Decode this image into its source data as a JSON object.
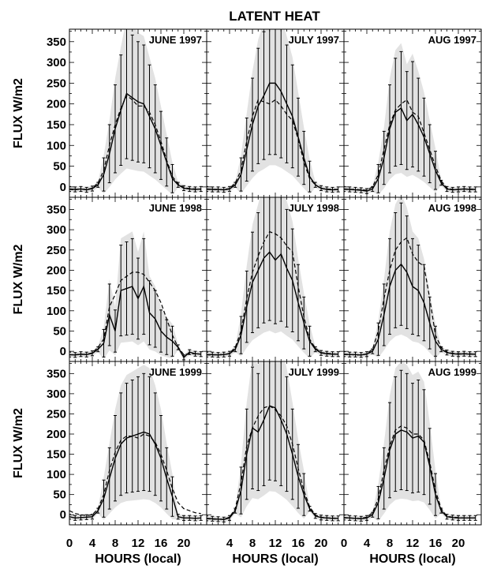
{
  "figure": {
    "title": "LATENT HEAT",
    "ylabel": "FLUX  W/m2",
    "xlabel": "HOURS (local)"
  },
  "chart_data": [
    {
      "type": "line",
      "title": "JUNE 1997",
      "xlim": [
        0,
        24
      ],
      "ylim": [
        -25,
        380
      ],
      "xticks": [
        0,
        4,
        8,
        12,
        16,
        20
      ],
      "yticks": [
        0,
        50,
        100,
        150,
        200,
        250,
        300,
        350
      ],
      "x": [
        0,
        1,
        2,
        3,
        4,
        5,
        6,
        7,
        8,
        9,
        10,
        11,
        12,
        13,
        14,
        15,
        16,
        17,
        18,
        19,
        20,
        21,
        22,
        23
      ],
      "series": [
        {
          "style": "solid",
          "values": [
            -5,
            -6,
            -5,
            -7,
            -4,
            5,
            30,
            80,
            140,
            185,
            225,
            215,
            205,
            200,
            170,
            140,
            100,
            60,
            20,
            5,
            -3,
            -5,
            -6,
            -5
          ]
        },
        {
          "style": "dashed",
          "values": [
            -6,
            -7,
            -5,
            -6,
            -3,
            10,
            40,
            100,
            150,
            190,
            220,
            210,
            195,
            195,
            180,
            150,
            110,
            65,
            25,
            8,
            -2,
            -4,
            -5,
            -6
          ]
        }
      ]
    },
    {
      "type": "line",
      "title": "JULY 1997",
      "xlim": [
        0,
        24
      ],
      "ylim": [
        -25,
        380
      ],
      "xticks": [
        4,
        8,
        12,
        16,
        20
      ],
      "yticks": [
        0,
        50,
        100,
        150,
        200,
        250,
        300,
        350
      ],
      "x": [
        0,
        1,
        2,
        3,
        4,
        5,
        6,
        7,
        8,
        9,
        10,
        11,
        12,
        13,
        14,
        15,
        16,
        17,
        18,
        19,
        20,
        21,
        22,
        23
      ],
      "series": [
        {
          "style": "solid",
          "values": [
            -5,
            -6,
            -6,
            -7,
            -5,
            5,
            30,
            90,
            150,
            195,
            220,
            250,
            250,
            230,
            200,
            170,
            120,
            70,
            25,
            5,
            -3,
            -6,
            -7,
            -6
          ]
        },
        {
          "style": "dashed",
          "values": [
            -6,
            -6,
            -7,
            -6,
            -4,
            10,
            40,
            110,
            170,
            210,
            205,
            200,
            210,
            195,
            175,
            160,
            115,
            60,
            20,
            5,
            -4,
            -5,
            -6,
            -6
          ]
        }
      ]
    },
    {
      "type": "line",
      "title": "AUG 1997",
      "xlim": [
        0,
        24
      ],
      "ylim": [
        -25,
        380
      ],
      "xticks": [
        0,
        4,
        8,
        12,
        16,
        20
      ],
      "yticks": [
        0,
        50,
        100,
        150,
        200,
        250,
        300,
        350
      ],
      "x": [
        0,
        1,
        2,
        3,
        4,
        5,
        6,
        7,
        8,
        9,
        10,
        11,
        12,
        13,
        14,
        15,
        16,
        17,
        18,
        19,
        20,
        21,
        22,
        23
      ],
      "series": [
        {
          "style": "solid",
          "values": [
            -5,
            -6,
            -7,
            -8,
            -10,
            -5,
            20,
            70,
            140,
            180,
            190,
            160,
            175,
            150,
            120,
            80,
            40,
            10,
            -5,
            -7,
            -6,
            -5,
            -6,
            -6
          ]
        },
        {
          "style": "dashed",
          "values": [
            -6,
            -6,
            -6,
            -7,
            -8,
            0,
            30,
            90,
            150,
            185,
            200,
            210,
            180,
            170,
            130,
            90,
            50,
            15,
            -3,
            -6,
            -6,
            -5,
            -5,
            -6
          ]
        }
      ]
    },
    {
      "type": "line",
      "title": "JUNE 1998",
      "xlim": [
        0,
        24
      ],
      "ylim": [
        -25,
        380
      ],
      "xticks": [
        0,
        4,
        8,
        12,
        16,
        20
      ],
      "yticks": [
        0,
        50,
        100,
        150,
        200,
        250,
        300,
        350
      ],
      "x": [
        0,
        1,
        2,
        3,
        4,
        5,
        6,
        7,
        8,
        9,
        10,
        11,
        12,
        13,
        14,
        15,
        16,
        17,
        18,
        19,
        20,
        21,
        22,
        23
      ],
      "series": [
        {
          "style": "solid",
          "values": [
            -8,
            -9,
            -7,
            -8,
            -5,
            5,
            20,
            90,
            50,
            150,
            155,
            160,
            130,
            160,
            95,
            80,
            50,
            35,
            25,
            10,
            -15,
            -2,
            -6,
            -7
          ]
        },
        {
          "style": "dashed",
          "values": [
            -9,
            -8,
            -8,
            -7,
            -4,
            10,
            30,
            110,
            140,
            175,
            185,
            195,
            195,
            190,
            170,
            150,
            120,
            80,
            40,
            10,
            -8,
            -6,
            -6,
            -7
          ]
        }
      ]
    },
    {
      "type": "line",
      "title": "JULY 1998",
      "xlim": [
        0,
        24
      ],
      "ylim": [
        -25,
        380
      ],
      "xticks": [
        4,
        8,
        12,
        16,
        20
      ],
      "yticks": [
        0,
        50,
        100,
        150,
        200,
        250,
        300,
        350
      ],
      "x": [
        0,
        1,
        2,
        3,
        4,
        5,
        6,
        7,
        8,
        9,
        10,
        11,
        12,
        13,
        14,
        15,
        16,
        17,
        18,
        19,
        20,
        21,
        22,
        23
      ],
      "series": [
        {
          "style": "solid",
          "values": [
            -8,
            -8,
            -9,
            -8,
            -6,
            5,
            40,
            110,
            170,
            200,
            230,
            245,
            225,
            240,
            205,
            175,
            120,
            70,
            25,
            5,
            -4,
            -6,
            -7,
            -7
          ]
        },
        {
          "style": "dashed",
          "values": [
            -9,
            -9,
            -8,
            -8,
            -5,
            10,
            50,
            130,
            195,
            235,
            270,
            295,
            290,
            280,
            260,
            245,
            160,
            85,
            30,
            8,
            -3,
            -5,
            -6,
            -7
          ]
        }
      ]
    },
    {
      "type": "line",
      "title": "AUG 1998",
      "xlim": [
        0,
        24
      ],
      "ylim": [
        -25,
        380
      ],
      "xticks": [
        0,
        4,
        8,
        12,
        16,
        20
      ],
      "yticks": [
        0,
        50,
        100,
        150,
        200,
        250,
        300,
        350
      ],
      "x": [
        0,
        1,
        2,
        3,
        4,
        5,
        6,
        7,
        8,
        9,
        10,
        11,
        12,
        13,
        14,
        15,
        16,
        17,
        18,
        19,
        20,
        21,
        22,
        23
      ],
      "series": [
        {
          "style": "solid",
          "values": [
            -7,
            -8,
            -8,
            -9,
            -7,
            0,
            30,
            90,
            160,
            200,
            215,
            195,
            160,
            150,
            120,
            70,
            25,
            5,
            -3,
            -6,
            -7,
            -6,
            -7,
            -7
          ]
        },
        {
          "style": "dashed",
          "values": [
            -8,
            -8,
            -9,
            -9,
            -6,
            5,
            50,
            130,
            200,
            250,
            270,
            280,
            240,
            220,
            210,
            130,
            40,
            10,
            -2,
            -5,
            -6,
            -6,
            -6,
            -7
          ]
        }
      ]
    },
    {
      "type": "line",
      "title": "JUNE 1999",
      "xlim": [
        0,
        24
      ],
      "ylim": [
        -25,
        380
      ],
      "xticks": [
        0,
        4,
        8,
        12,
        16,
        20
      ],
      "yticks": [
        0,
        50,
        100,
        150,
        200,
        250,
        300,
        350
      ],
      "x": [
        0,
        1,
        2,
        3,
        4,
        5,
        6,
        7,
        8,
        9,
        10,
        11,
        12,
        13,
        14,
        15,
        16,
        17,
        18,
        19,
        20,
        21,
        22,
        23
      ],
      "series": [
        {
          "style": "solid",
          "values": [
            -5,
            -8,
            -7,
            -6,
            -5,
            10,
            40,
            90,
            140,
            175,
            190,
            195,
            200,
            205,
            200,
            175,
            140,
            90,
            45,
            -5,
            -8,
            -8,
            -9,
            -8
          ]
        },
        {
          "style": "dashed",
          "values": [
            10,
            3,
            0,
            -2,
            0,
            15,
            50,
            110,
            155,
            185,
            195,
            195,
            190,
            200,
            195,
            180,
            150,
            110,
            65,
            30,
            15,
            10,
            5,
            3
          ]
        }
      ]
    },
    {
      "type": "line",
      "title": "JULY 1999",
      "xlim": [
        0,
        24
      ],
      "ylim": [
        -25,
        380
      ],
      "xticks": [
        4,
        8,
        12,
        16,
        20
      ],
      "yticks": [
        0,
        50,
        100,
        150,
        200,
        250,
        300,
        350
      ],
      "x": [
        0,
        1,
        2,
        3,
        4,
        5,
        6,
        7,
        8,
        9,
        10,
        11,
        12,
        13,
        14,
        15,
        16,
        17,
        18,
        19,
        20,
        21,
        22,
        23
      ],
      "series": [
        {
          "style": "solid",
          "values": [
            -9,
            -10,
            -11,
            -12,
            -8,
            10,
            60,
            150,
            215,
            205,
            235,
            270,
            265,
            235,
            200,
            150,
            95,
            50,
            15,
            -3,
            -7,
            -8,
            -9,
            -9
          ]
        },
        {
          "style": "dashed",
          "values": [
            -10,
            -11,
            -11,
            -11,
            -6,
            15,
            80,
            170,
            215,
            245,
            265,
            270,
            260,
            245,
            220,
            175,
            115,
            60,
            20,
            -1,
            -6,
            -8,
            -8,
            -9
          ]
        }
      ]
    },
    {
      "type": "line",
      "title": "AUG 1999",
      "xlim": [
        0,
        24
      ],
      "ylim": [
        -25,
        380
      ],
      "xticks": [
        0,
        4,
        8,
        12,
        16,
        20
      ],
      "yticks": [
        0,
        50,
        100,
        150,
        200,
        250,
        300,
        350
      ],
      "x": [
        0,
        1,
        2,
        3,
        4,
        5,
        6,
        7,
        8,
        9,
        10,
        11,
        12,
        13,
        14,
        15,
        16,
        17,
        18,
        19,
        20,
        21,
        22,
        23
      ],
      "series": [
        {
          "style": "solid",
          "values": [
            -7,
            -8,
            -9,
            -10,
            -8,
            0,
            30,
            90,
            160,
            200,
            210,
            205,
            190,
            195,
            180,
            120,
            50,
            10,
            -5,
            -7,
            -8,
            -8,
            -8,
            -8
          ]
        },
        {
          "style": "dashed",
          "values": [
            -8,
            -8,
            -9,
            -9,
            -6,
            5,
            40,
            110,
            170,
            210,
            220,
            215,
            200,
            200,
            185,
            130,
            60,
            15,
            -4,
            -6,
            -7,
            -8,
            -8,
            -8
          ]
        }
      ]
    }
  ]
}
